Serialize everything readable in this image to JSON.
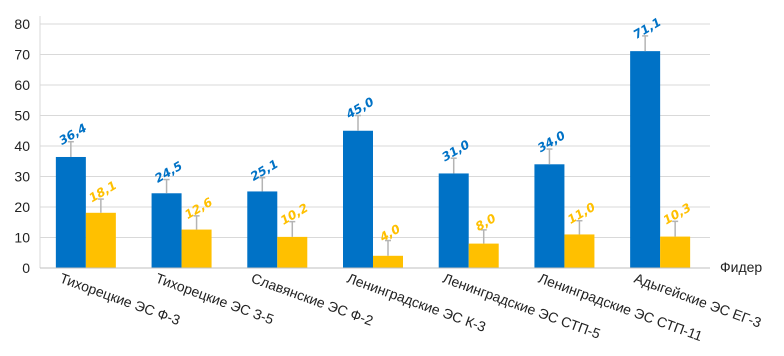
{
  "chart_data": {
    "type": "bar",
    "categories": [
      "Тихорецкие ЭС Ф-3",
      "Тихорецкие ЭС З-5",
      "Славянские ЭС Ф-2",
      "Ленинградские ЭС К-3",
      "Ленинградские ЭС СТП-5",
      "Ленинградские ЭС СТП-11",
      "Адыгейские ЭС ЕГ-3"
    ],
    "series": [
      {
        "color": "#0072C6",
        "values": [
          36.4,
          24.5,
          25.1,
          45.0,
          31.0,
          34.0,
          71.1
        ],
        "value_labels": [
          "36,4",
          "24,5",
          "25,1",
          "45,0",
          "31,0",
          "34,0",
          "71,1"
        ],
        "errors": [
          5,
          4.5,
          4.5,
          5,
          5,
          5,
          5
        ]
      },
      {
        "color": "#FFC000",
        "values": [
          18.1,
          12.6,
          10.2,
          4.0,
          8.0,
          11.0,
          10.3
        ],
        "value_labels": [
          "18,1",
          "12,6",
          "10,2",
          "4,0",
          "8,0",
          "11,0",
          "10,3"
        ],
        "errors": [
          4.5,
          4.5,
          5,
          5,
          4.5,
          4.5,
          5
        ]
      }
    ],
    "xlabel": "Фидер",
    "ylabel": "",
    "ylim": [
      0,
      80
    ],
    "yticks": [
      0,
      10,
      20,
      30,
      40,
      50,
      60,
      70,
      80
    ],
    "grid": true,
    "legend": "none",
    "error_bar_color": "#B4B4B4",
    "grid_color": "#D9D9D9"
  }
}
